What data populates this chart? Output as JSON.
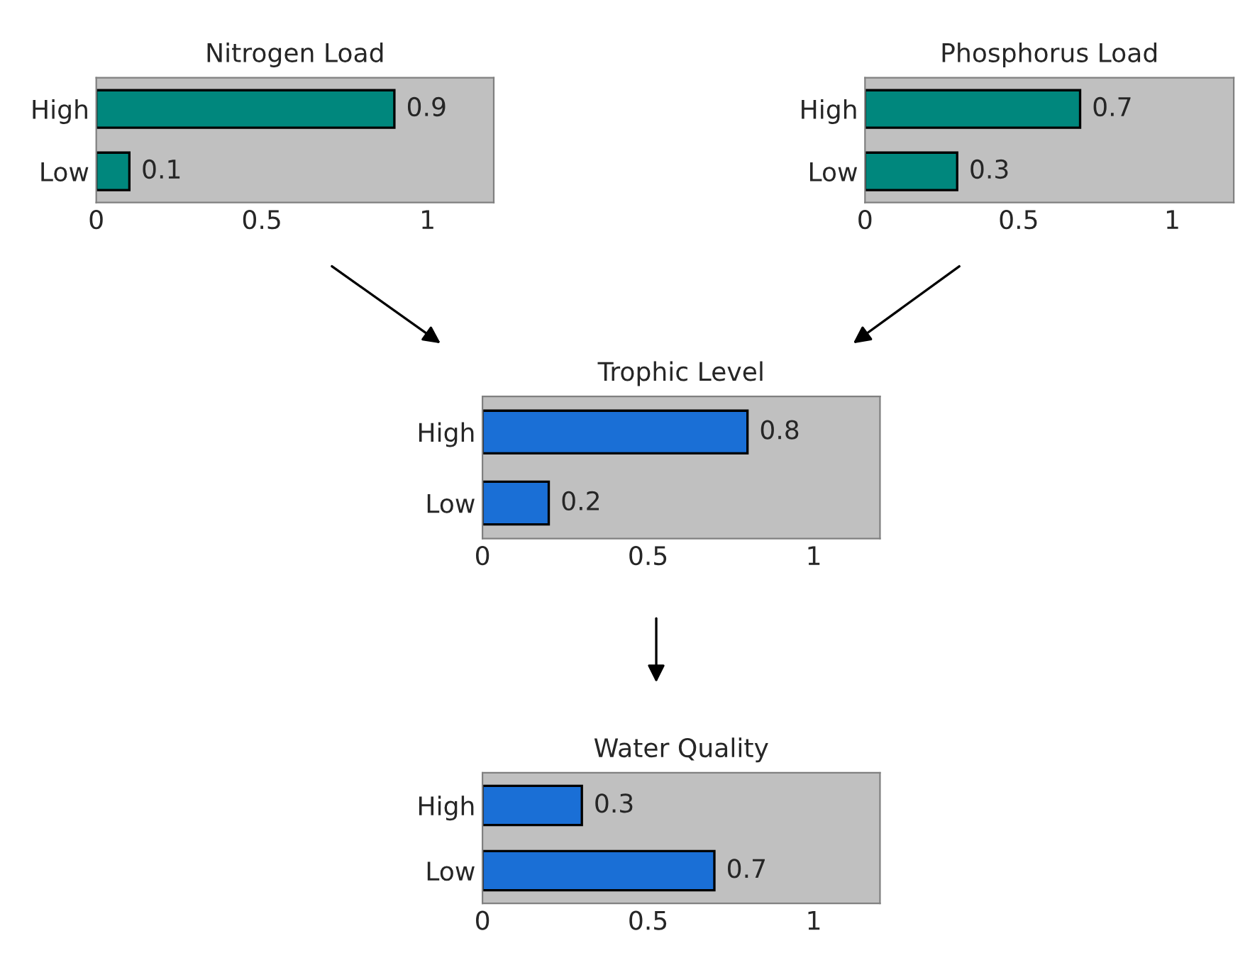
{
  "chart_data": [
    {
      "type": "bar",
      "orientation": "horizontal",
      "title": "Nitrogen Load",
      "categories": [
        "High",
        "Low"
      ],
      "values": [
        0.9,
        0.1
      ],
      "color": "#00877d",
      "xlim": [
        0,
        1.2
      ],
      "xticks": [
        0,
        0.5,
        1
      ],
      "data_labels": true,
      "grid": false,
      "legend": false
    },
    {
      "type": "bar",
      "orientation": "horizontal",
      "title": "Phosphorus Load",
      "categories": [
        "High",
        "Low"
      ],
      "values": [
        0.7,
        0.3
      ],
      "color": "#00877d",
      "xlim": [
        0,
        1.2
      ],
      "xticks": [
        0,
        0.5,
        1
      ],
      "data_labels": true,
      "grid": false,
      "legend": false
    },
    {
      "type": "bar",
      "orientation": "horizontal",
      "title": "Trophic Level",
      "categories": [
        "High",
        "Low"
      ],
      "values": [
        0.8,
        0.2
      ],
      "color": "#1a6fd6",
      "xlim": [
        0,
        1.2
      ],
      "xticks": [
        0,
        0.5,
        1
      ],
      "data_labels": true,
      "grid": false,
      "legend": false
    },
    {
      "type": "bar",
      "orientation": "horizontal",
      "title": "Water Quality",
      "categories": [
        "High",
        "Low"
      ],
      "values": [
        0.3,
        0.7
      ],
      "color": "#1a6fd6",
      "xlim": [
        0,
        1.2
      ],
      "xticks": [
        0,
        0.5,
        1
      ],
      "data_labels": true,
      "grid": false,
      "legend": false
    }
  ]
}
